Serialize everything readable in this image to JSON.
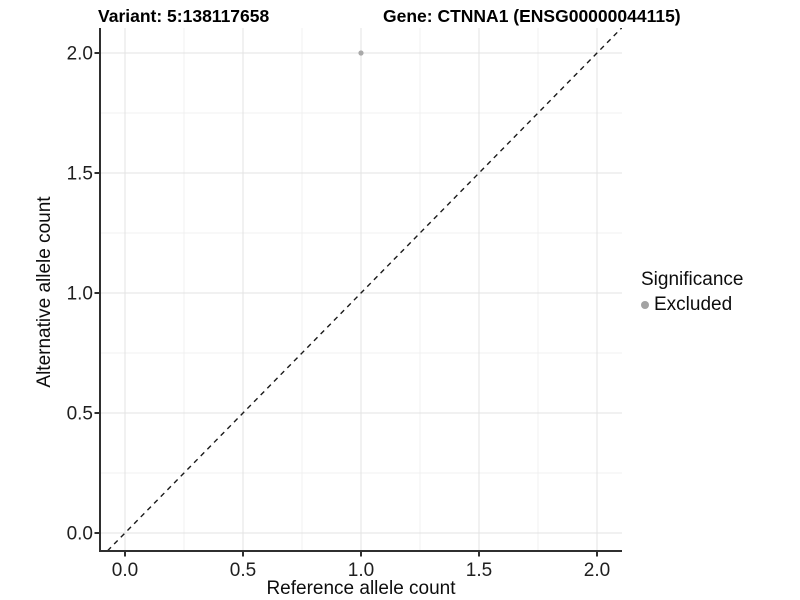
{
  "chart_data": {
    "type": "scatter",
    "title_left": "Variant: 5:138117658",
    "title_right": "Gene: CTNNA1 (ENSG00000044115)",
    "xlabel": "Reference allele count",
    "ylabel": "Alternative allele count",
    "xlim": [
      -0.11,
      2.11
    ],
    "ylim": [
      -0.08,
      2.1
    ],
    "xticks": [
      0.0,
      0.5,
      1.0,
      1.5,
      2.0
    ],
    "yticks": [
      0.0,
      0.5,
      1.0,
      1.5,
      2.0
    ],
    "xtick_labels": [
      "0.0",
      "0.5",
      "1.0",
      "1.5",
      "2.0"
    ],
    "ytick_labels": [
      "0.0",
      "0.5",
      "1.0",
      "1.5",
      "2.0"
    ],
    "grid": {
      "major": true,
      "minor": true
    },
    "series": [
      {
        "name": "Excluded",
        "color": "#a9a9a9",
        "points": [
          {
            "x": 1.0,
            "y": 2.0
          }
        ]
      }
    ],
    "reference_line": {
      "type": "identity",
      "slope": 1,
      "intercept": 0,
      "linetype": "dashed",
      "color": "#1a1a1a"
    },
    "legend": {
      "title": "Significance",
      "position": "right",
      "entries": [
        {
          "label": "Excluded",
          "color": "#a3a3a3",
          "marker": "circle"
        }
      ]
    },
    "colors": {
      "background": "#ffffff",
      "grid_major": "#e3e3e3",
      "grid_minor": "#f0f0f0",
      "axis_line": "#2f2f2f",
      "axis_text": "#1f1f1f",
      "title_text": "#000000"
    }
  }
}
